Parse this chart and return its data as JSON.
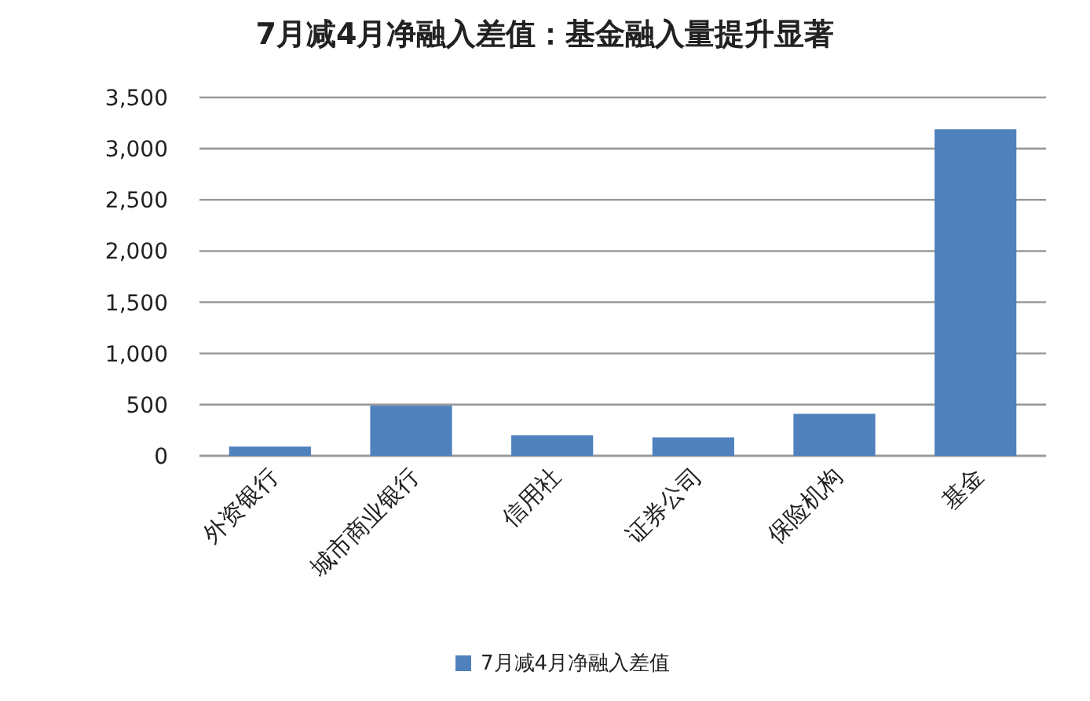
{
  "chart_data": {
    "type": "bar",
    "title": "7月减4月净融入差值：基金融入量提升显著",
    "categories": [
      "外资银行",
      "城市商业银行",
      "信用社",
      "证券公司",
      "保险机构",
      "基金"
    ],
    "series": [
      {
        "name": "7月减4月净融入差值",
        "color": "#4f81bd",
        "values": [
          90,
          490,
          200,
          180,
          410,
          3190
        ]
      }
    ],
    "ylim": [
      0,
      3500
    ],
    "yticks": [
      {
        "value": 0,
        "label": "0"
      },
      {
        "value": 500,
        "label": "500"
      },
      {
        "value": 1000,
        "label": "1,000"
      },
      {
        "value": 1500,
        "label": "1,500"
      },
      {
        "value": 2000,
        "label": "2,000"
      },
      {
        "value": 2500,
        "label": "2,500"
      },
      {
        "value": 3000,
        "label": "3,000"
      },
      {
        "value": 3500,
        "label": "3,500"
      }
    ],
    "grid": "y",
    "legend": "bottom"
  }
}
